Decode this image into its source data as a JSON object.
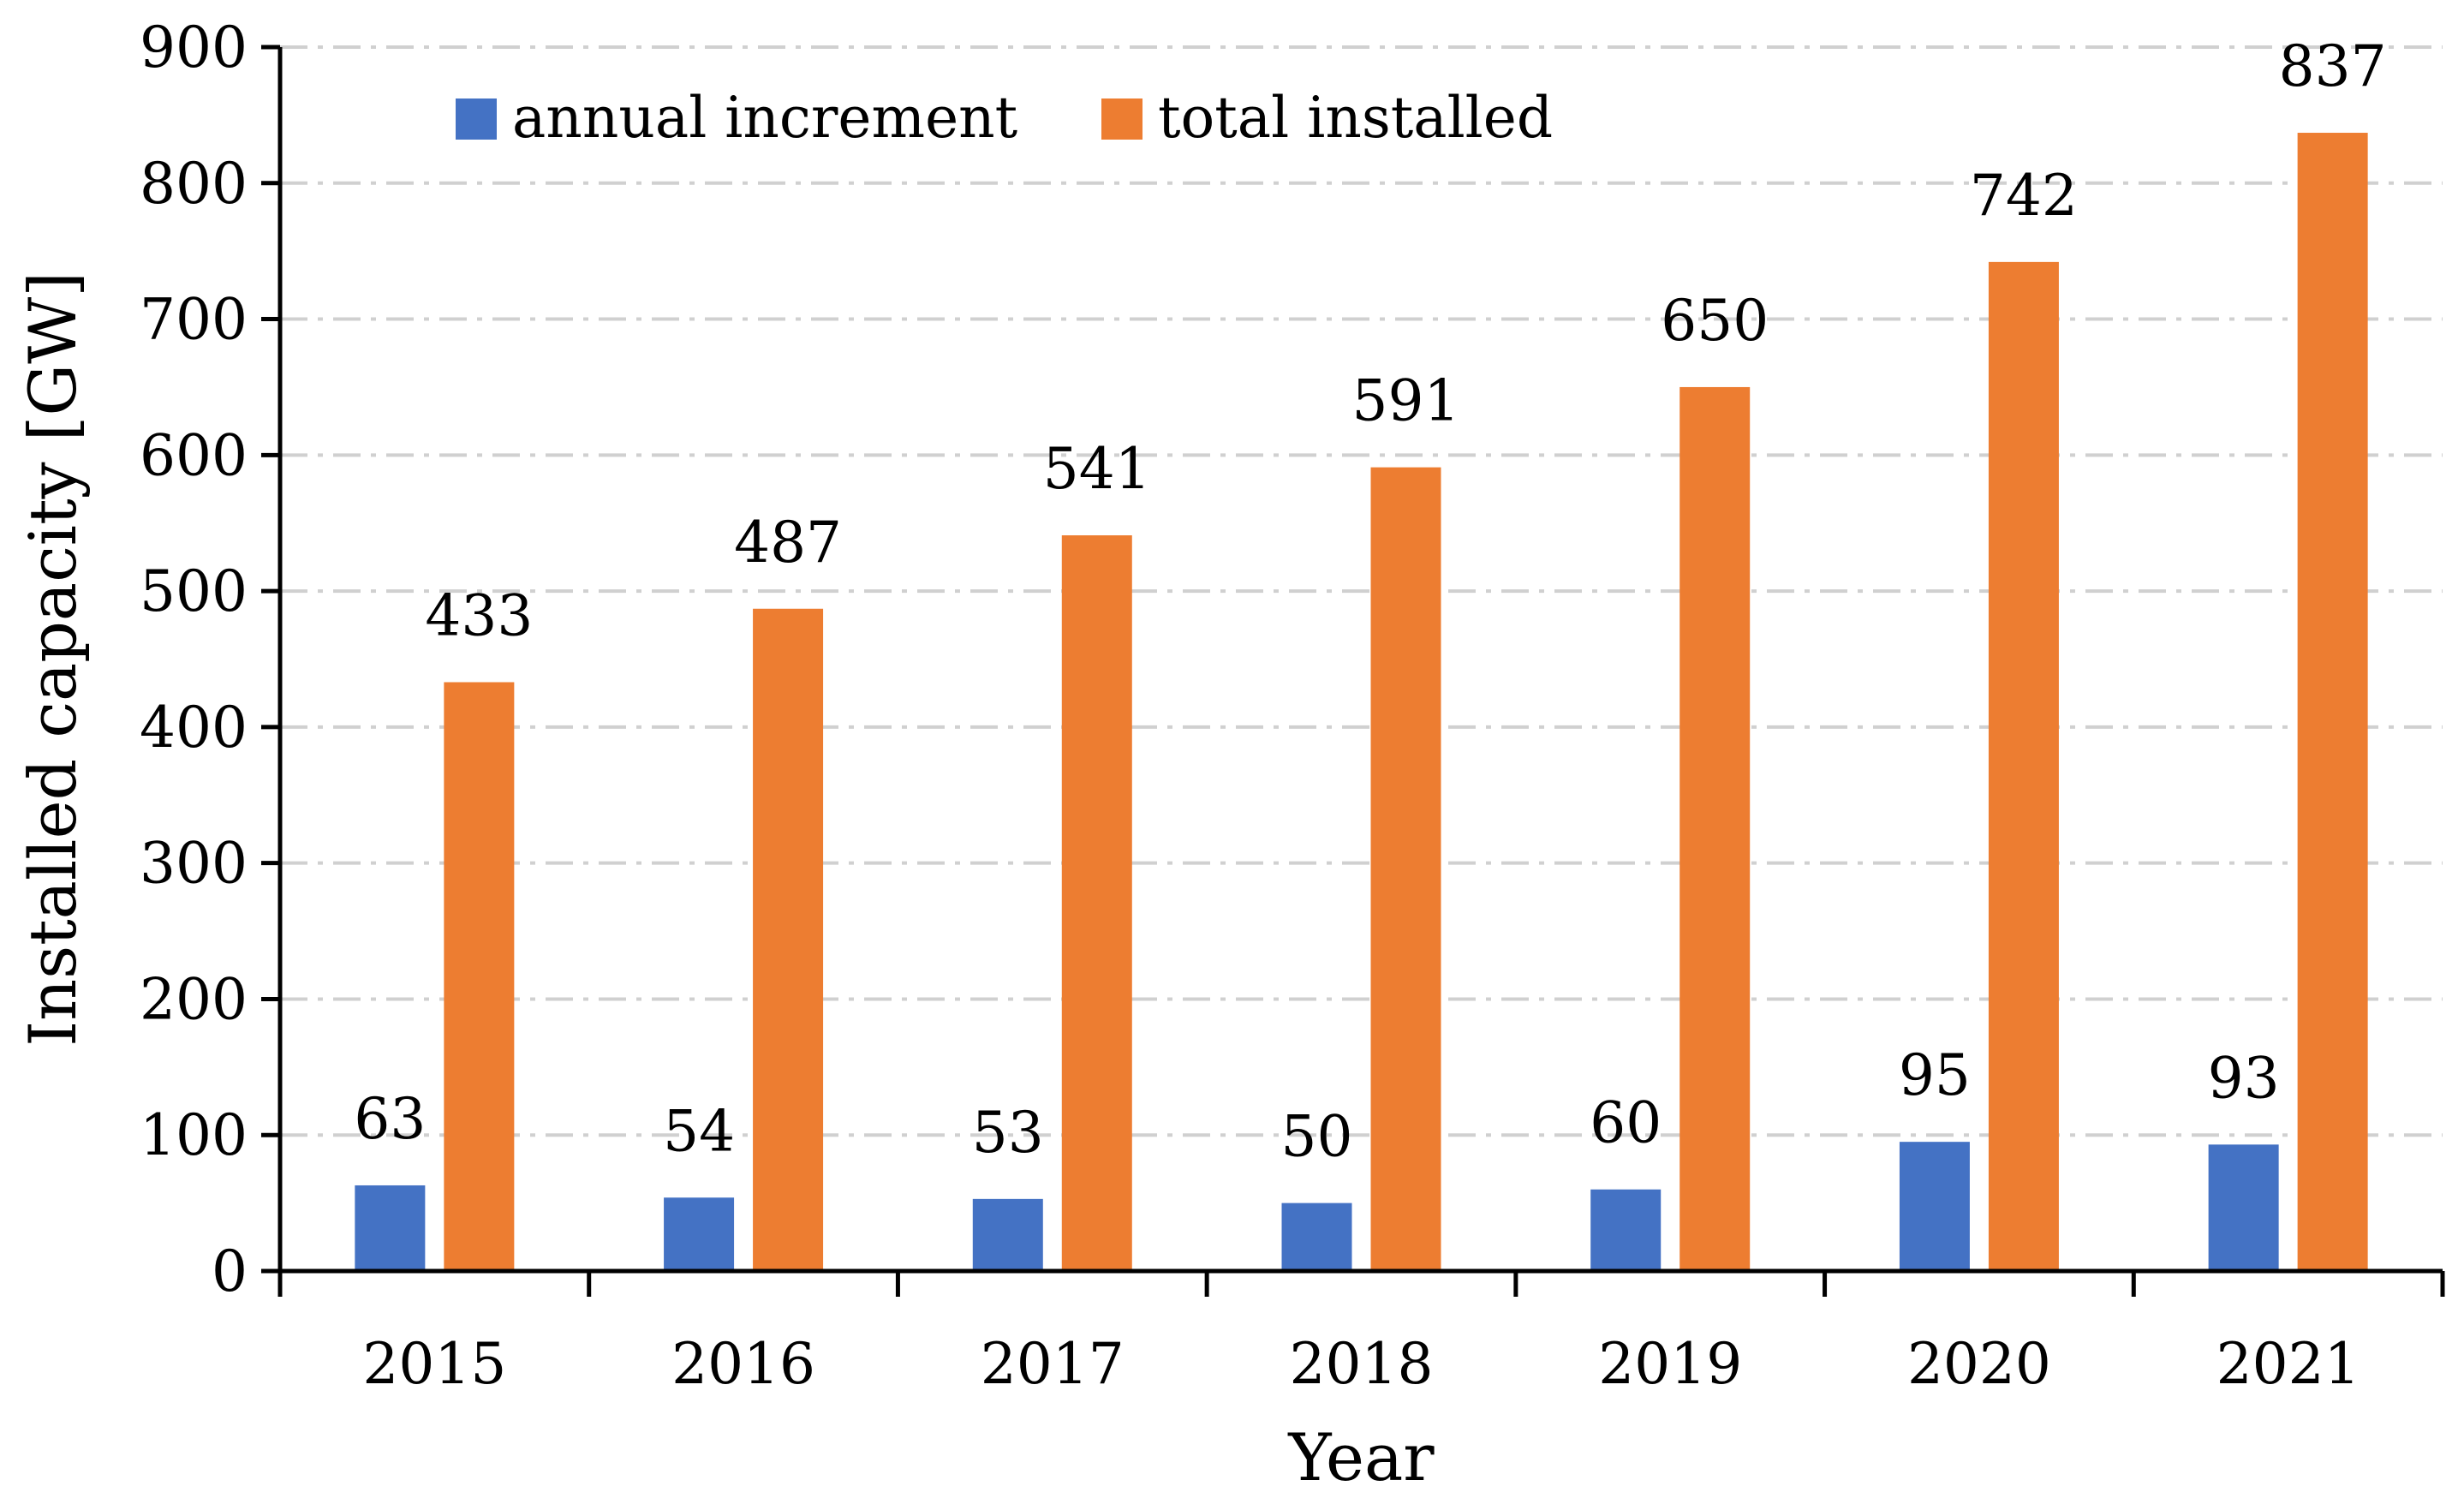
{
  "chart_data": {
    "type": "bar",
    "categories": [
      "2015",
      "2016",
      "2017",
      "2018",
      "2019",
      "2020",
      "2021"
    ],
    "series": [
      {
        "name": "annual increment",
        "values": [
          63,
          54,
          53,
          50,
          60,
          95,
          93
        ],
        "color": "#4472C4"
      },
      {
        "name": "total installed",
        "values": [
          433,
          487,
          541,
          591,
          650,
          742,
          837
        ],
        "color": "#ED7D31"
      }
    ],
    "xlabel": "Year",
    "ylabel": "Installed capacity [GW]",
    "ylim": [
      0,
      900
    ],
    "yticks": [
      "0",
      "100",
      "200",
      "300",
      "400",
      "500",
      "600",
      "700",
      "800",
      "900"
    ],
    "grid": true,
    "legend": "top-left"
  }
}
